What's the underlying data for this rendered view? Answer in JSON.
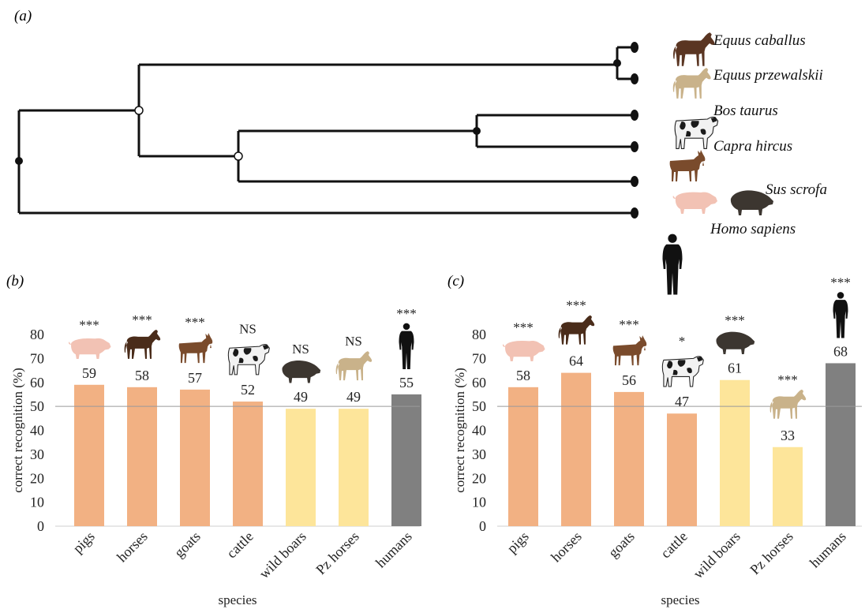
{
  "panel_labels": {
    "a": "(a)",
    "b": "(b)",
    "c": "(c)"
  },
  "tree": {
    "taxa": [
      "Equus caballus",
      "Equus przewalskii",
      "Bos taurus",
      "Capra hircus",
      "Sus scrofa",
      "Homo sapiens"
    ]
  },
  "chart_data": [
    {
      "type": "bar",
      "panel": "(b)",
      "categories": [
        "pigs",
        "horses",
        "goats",
        "cattle",
        "wild boars",
        "Pz horses",
        "humans"
      ],
      "values": [
        59,
        58,
        57,
        52,
        49,
        49,
        55
      ],
      "data_labels": [
        "59",
        "58",
        "57",
        "52",
        "49",
        "49",
        "55"
      ],
      "significance": [
        "***",
        "***",
        "***",
        "NS",
        "NS",
        "NS",
        "***"
      ],
      "bar_colors": [
        "#f2b183",
        "#f2b183",
        "#f2b183",
        "#f2b183",
        "#fde59a",
        "#fde59a",
        "#808080"
      ],
      "icons": [
        "pig-icon",
        "horse-icon",
        "goat-icon",
        "cow-icon",
        "boar-icon",
        "przewalski-horse-icon",
        "human-icon"
      ],
      "xlabel": "species",
      "ylabel": "correct recognition (%)",
      "ylim": [
        0,
        80
      ],
      "yticks": [
        "0",
        "10",
        "20",
        "30",
        "40",
        "50",
        "60",
        "70",
        "80"
      ],
      "reference_line": 50,
      "grid": false
    },
    {
      "type": "bar",
      "panel": "(c)",
      "categories": [
        "pigs",
        "horses",
        "goats",
        "cattle",
        "wild boars",
        "Pz horses",
        "humans"
      ],
      "values": [
        58,
        64,
        56,
        47,
        61,
        33,
        68
      ],
      "data_labels": [
        "58",
        "64",
        "56",
        "47",
        "61",
        "33",
        "68"
      ],
      "significance": [
        "***",
        "***",
        "***",
        "*",
        "***",
        "***",
        "***"
      ],
      "bar_colors": [
        "#f2b183",
        "#f2b183",
        "#f2b183",
        "#f2b183",
        "#fde59a",
        "#fde59a",
        "#808080"
      ],
      "icons": [
        "pig-icon",
        "horse-icon",
        "goat-icon",
        "cow-icon",
        "boar-icon",
        "przewalski-horse-icon",
        "human-icon"
      ],
      "xlabel": "species",
      "ylabel": "correct recognition (%)",
      "ylim": [
        0,
        80
      ],
      "yticks": [
        "0",
        "10",
        "20",
        "30",
        "40",
        "50",
        "60",
        "70",
        "80"
      ],
      "reference_line": 50,
      "grid": false
    }
  ]
}
